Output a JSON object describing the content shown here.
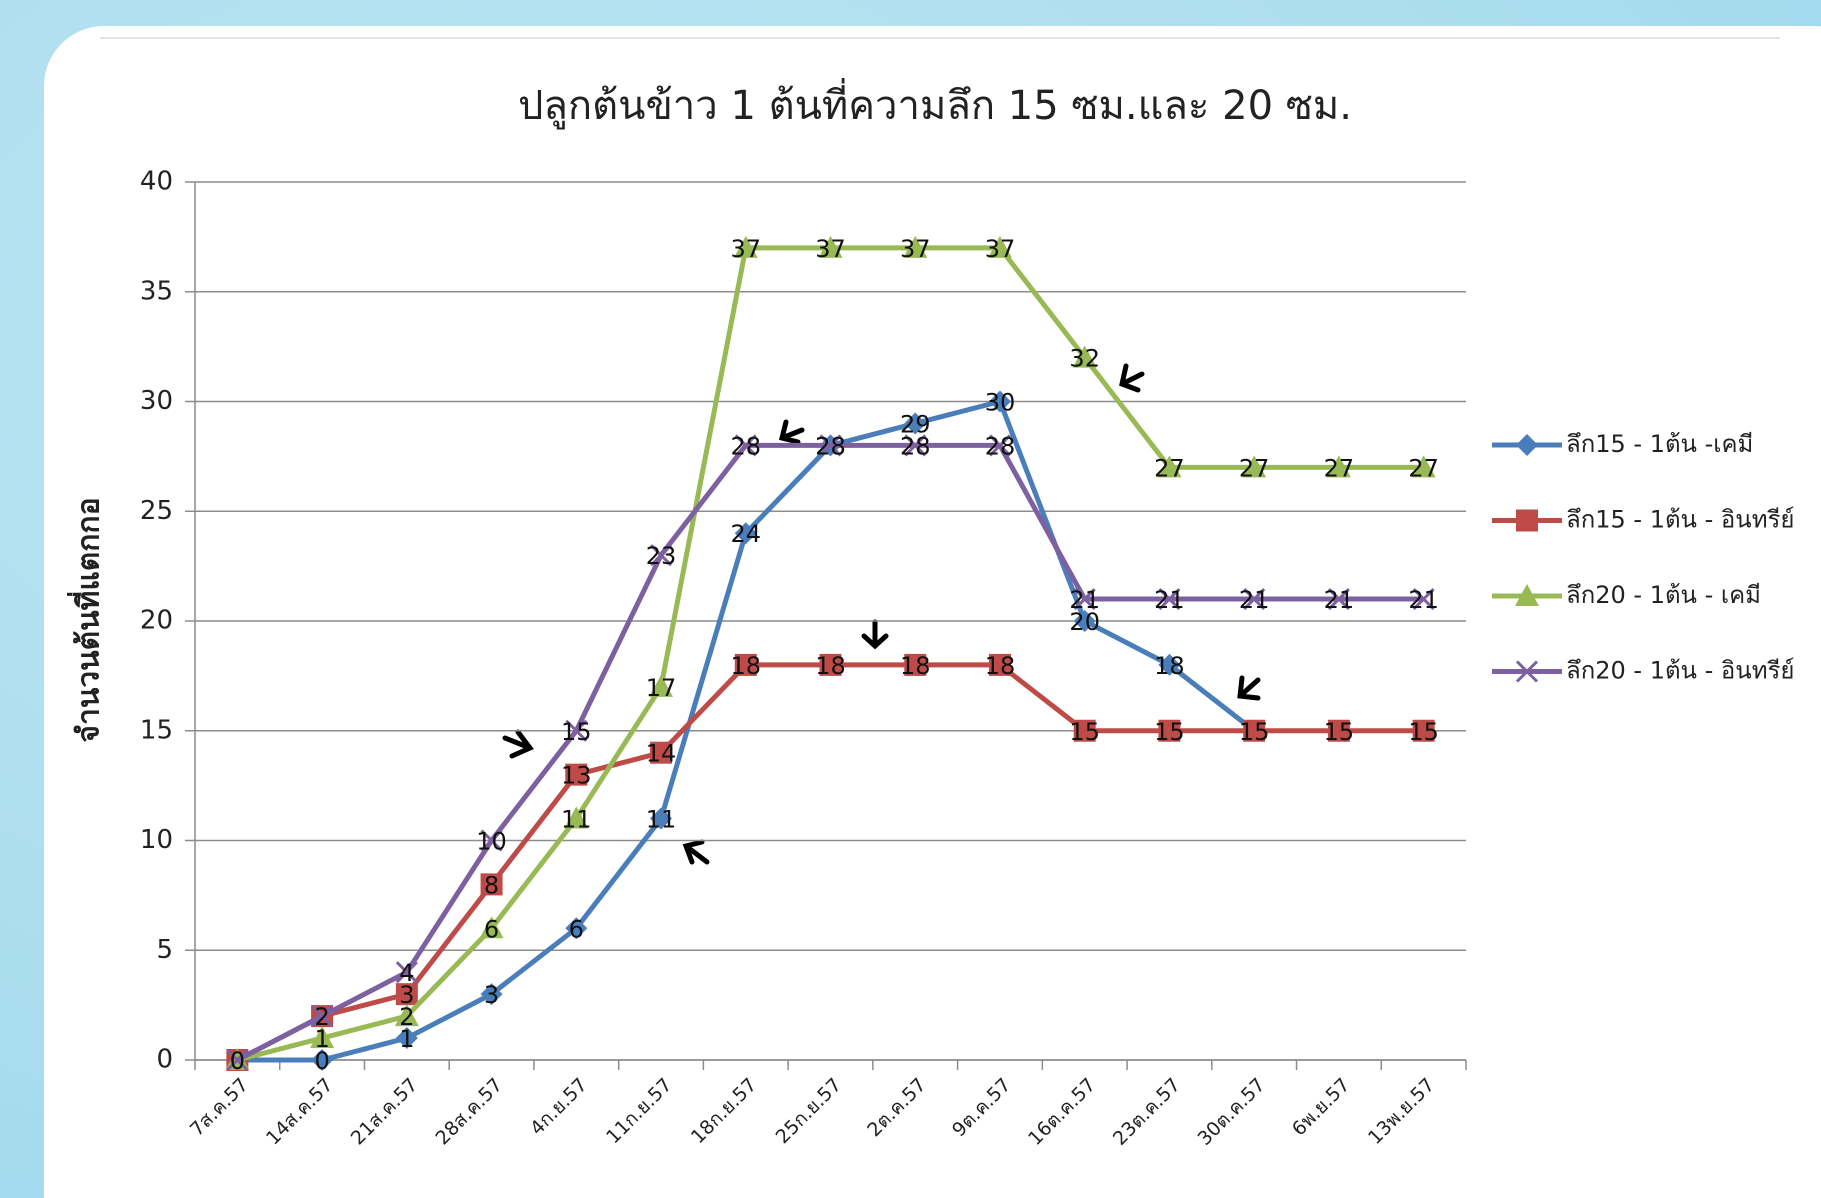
{
  "chart_data": {
    "type": "line",
    "title": "ปลูกต้นข้าว 1 ต้นที่ความลึก 15 ซม.และ 20 ซม.",
    "y_label": "จำนวนต้นที่แตกกอ",
    "categories": [
      "7ส.ค.57",
      "14ส.ค.57",
      "21ส.ค.57",
      "28ส.ค.57",
      "4ก.ย.57",
      "11ก.ย.57",
      "18ก.ย.57",
      "25ก.ย.57",
      "2ต.ค.57",
      "9ต.ค.57",
      "16ต.ค.57",
      "23ต.ค.57",
      "30ต.ค.57",
      "6พ.ย.57",
      "13พ.ย.57"
    ],
    "series": [
      {
        "name": "ลึก15 - 1ต้น -เคมี",
        "color": "#4a7ebb",
        "marker": "diamond",
        "values": [
          0,
          0,
          1,
          3,
          6,
          11,
          24,
          28,
          29,
          30,
          20,
          18,
          15,
          null,
          null
        ]
      },
      {
        "name": "ลึก15 - 1ต้น - อินทรีย์",
        "color": "#be4b48",
        "marker": "square",
        "values": [
          0,
          2,
          3,
          8,
          13,
          14,
          18,
          18,
          18,
          18,
          15,
          15,
          15,
          15,
          15
        ]
      },
      {
        "name": "ลึก20 - 1ต้น - เคมี",
        "color": "#98b954",
        "marker": "triangle",
        "values": [
          0,
          1,
          2,
          6,
          11,
          17,
          37,
          37,
          37,
          37,
          32,
          27,
          27,
          27,
          27
        ]
      },
      {
        "name": "ลึก20 - 1ต้น - อินทรีย์",
        "color": "#7d60a0",
        "marker": "x",
        "values": [
          0,
          2,
          4,
          10,
          15,
          23,
          28,
          28,
          28,
          28,
          21,
          21,
          21,
          21,
          21
        ]
      }
    ],
    "ylim": [
      0,
      40
    ],
    "yticks": [
      0,
      5,
      10,
      15,
      20,
      25,
      30,
      35,
      40
    ],
    "grid": true,
    "legend": "right"
  }
}
